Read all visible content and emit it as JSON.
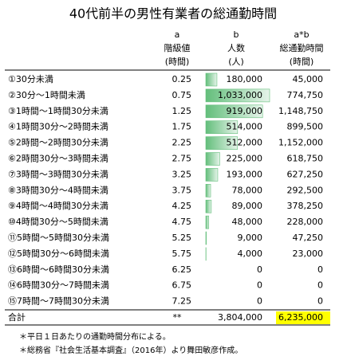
{
  "title": "40代前半の男性有業者の総通勤時間",
  "header": [
    [
      "a",
      "階級値",
      "(時間)"
    ],
    [
      "b",
      "人数",
      "(人)"
    ],
    [
      "a*b",
      "総通勤時間",
      "(時間)"
    ]
  ],
  "rows": [
    [
      "①30分未満",
      "0.25",
      "180,000",
      "45,000"
    ],
    [
      "②30分～1時間未満",
      "0.75",
      "1,033,000",
      "774,750"
    ],
    [
      "③1時間～1時間30分未満",
      "1.25",
      "919,000",
      "1,148,750"
    ],
    [
      "④1時間30分～2時間未満",
      "1.75",
      "514,000",
      "899,500"
    ],
    [
      "⑤2時間～2時間30分未満",
      "2.25",
      "512,000",
      "1,152,000"
    ],
    [
      "⑥2時間30分～3時間未満",
      "2.75",
      "225,000",
      "618,750"
    ],
    [
      "⑦3時間～3時間30分未満",
      "3.25",
      "193,000",
      "627,250"
    ],
    [
      "⑧3時間30分～4時間未満",
      "3.75",
      "78,000",
      "292,500"
    ],
    [
      "⑨4時間～4時間30分未満",
      "4.25",
      "89,000",
      "378,250"
    ],
    [
      "⑩4時間30分～5時間未満",
      "4.75",
      "48,000",
      "228,000"
    ],
    [
      "⑪5時間～5時間30分未満",
      "5.25",
      "9,000",
      "47,250"
    ],
    [
      "⑫5時間30分～6時間未満",
      "5.75",
      "4,000",
      "23,000"
    ],
    [
      "⑬6時間～6時間30分未満",
      "6.25",
      "0",
      "0"
    ],
    [
      "⑭6時間30分～7時間未満",
      "6.75",
      "0",
      "0"
    ],
    [
      "⑮7時間～7時間30分未満",
      "7.25",
      "0",
      "0"
    ]
  ],
  "total": [
    "合計",
    "**",
    "3,804,000",
    "6,235,000"
  ],
  "notes": [
    "＊平日１日あたりの通勤時間分布による。",
    "＊総務省『社会生活基本調査』（2016年）より舞田敏彦作成。"
  ]
}
